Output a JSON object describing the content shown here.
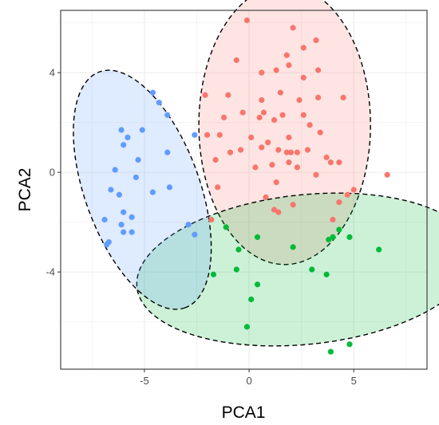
{
  "chart_data": {
    "type": "scatter",
    "title": "",
    "xlabel": "PCA1",
    "ylabel": "PCA2",
    "xlim": [
      -9,
      8.5
    ],
    "ylim": [
      -7.9,
      6.5
    ],
    "x_ticks": [
      -5,
      0,
      5
    ],
    "y_ticks": [
      -4,
      0,
      4
    ],
    "x_tick_labels": [
      "-5",
      "0",
      "5"
    ],
    "y_tick_labels": [
      "-4",
      "0",
      "4"
    ],
    "grid": true,
    "legend": "none",
    "series": [
      {
        "color": "#F8766D",
        "ellipse": {
          "cx": 1.7,
          "cy": 1.9,
          "rx": 4.1,
          "ry": 5.6,
          "angle_deg": 0
        },
        "points": [
          [
            -0.1,
            6.1
          ],
          [
            2.1,
            5.8
          ],
          [
            3.2,
            5.3
          ],
          [
            2.6,
            5.0
          ],
          [
            -0.6,
            4.5
          ],
          [
            1.8,
            4.7
          ],
          [
            1.9,
            4.3
          ],
          [
            3.3,
            4.1
          ],
          [
            0.6,
            4.0
          ],
          [
            1.3,
            4.1
          ],
          [
            2.6,
            3.8
          ],
          [
            1.5,
            3.2
          ],
          [
            -1.0,
            3.1
          ],
          [
            3.3,
            3.0
          ],
          [
            0.6,
            2.9
          ],
          [
            2.4,
            2.9
          ],
          [
            -2.1,
            3.1
          ],
          [
            -0.3,
            2.4
          ],
          [
            0.7,
            2.4
          ],
          [
            1.6,
            2.3
          ],
          [
            2.6,
            2.3
          ],
          [
            4.5,
            3.0
          ],
          [
            1.2,
            2.1
          ],
          [
            -1.2,
            2.2
          ],
          [
            0.5,
            2.2
          ],
          [
            2.9,
            1.9
          ],
          [
            -2.0,
            1.5
          ],
          [
            -1.4,
            1.5
          ],
          [
            0.1,
            1.4
          ],
          [
            1.9,
            1.4
          ],
          [
            3.4,
            1.6
          ],
          [
            0.9,
            1.2
          ],
          [
            -0.4,
            0.9
          ],
          [
            1.4,
            0.9
          ],
          [
            2.8,
            0.9
          ],
          [
            1.8,
            0.8
          ],
          [
            -0.9,
            0.8
          ],
          [
            0.6,
            1.0
          ],
          [
            2.0,
            0.8
          ],
          [
            2.3,
            0.8
          ],
          [
            -1.6,
            0.5
          ],
          [
            3.7,
            0.6
          ],
          [
            1.1,
            0.3
          ],
          [
            1.9,
            0.4
          ],
          [
            4.3,
            0.4
          ],
          [
            0.3,
            0.2
          ],
          [
            2.3,
            0.2
          ],
          [
            3.9,
            0.4
          ],
          [
            1.3,
            -0.4
          ],
          [
            3.2,
            -0.1
          ],
          [
            6.6,
            -0.1
          ],
          [
            -1.5,
            -0.6
          ],
          [
            0.8,
            -1.0
          ],
          [
            2.1,
            -1.3
          ],
          [
            5.0,
            -0.7
          ],
          [
            4.7,
            -0.9
          ],
          [
            4.3,
            -1.2
          ],
          [
            1.4,
            -1.6
          ],
          [
            4.0,
            -1.9
          ],
          [
            1.2,
            -1.5
          ],
          [
            -1.8,
            -1.9
          ]
        ]
      },
      {
        "color": "#00BA38",
        "ellipse": {
          "cx": 2.7,
          "cy": -3.9,
          "rx": 8.1,
          "ry": 3.0,
          "angle_deg": -6
        },
        "points": [
          [
            0.4,
            -2.6
          ],
          [
            -1.1,
            -2.2
          ],
          [
            2.1,
            -3.0
          ],
          [
            4.3,
            -2.3
          ],
          [
            4.0,
            -2.6
          ],
          [
            4.8,
            -2.6
          ],
          [
            3.8,
            -2.7
          ],
          [
            6.2,
            -3.1
          ],
          [
            -0.5,
            -3.1
          ],
          [
            -0.6,
            -3.9
          ],
          [
            3.0,
            -3.9
          ],
          [
            -1.7,
            -4.1
          ],
          [
            3.7,
            -4.1
          ],
          [
            0.4,
            -4.5
          ],
          [
            0.1,
            -5.1
          ],
          [
            -0.1,
            -6.2
          ],
          [
            4.8,
            -6.9
          ],
          [
            3.9,
            -7.2
          ]
        ]
      },
      {
        "color": "#619CFF",
        "ellipse": {
          "cx": -5.1,
          "cy": -0.7,
          "rx": 6.0,
          "ry": 2.3,
          "angle_deg": 70
        },
        "points": [
          [
            -4.6,
            3.2
          ],
          [
            -4.3,
            2.8
          ],
          [
            -3.9,
            2.3
          ],
          [
            -6.1,
            1.7
          ],
          [
            -5.1,
            1.7
          ],
          [
            -5.8,
            1.4
          ],
          [
            -6.0,
            1.1
          ],
          [
            -2.6,
            1.5
          ],
          [
            -3.9,
            0.8
          ],
          [
            -5.3,
            0.5
          ],
          [
            -6.4,
            0.1
          ],
          [
            -5.4,
            -0.2
          ],
          [
            -6.6,
            -0.7
          ],
          [
            -3.8,
            -0.6
          ],
          [
            -4.6,
            -0.8
          ],
          [
            -6.2,
            -0.9
          ],
          [
            -5.6,
            -1.8
          ],
          [
            -6.0,
            -1.6
          ],
          [
            -6.9,
            -1.9
          ],
          [
            -6.1,
            -2.1
          ],
          [
            -5.6,
            -2.4
          ],
          [
            -6.0,
            -2.4
          ],
          [
            -2.9,
            -2.1
          ],
          [
            -2.6,
            -2.5
          ],
          [
            -6.7,
            -2.8
          ],
          [
            -6.8,
            -2.9
          ]
        ]
      }
    ]
  }
}
